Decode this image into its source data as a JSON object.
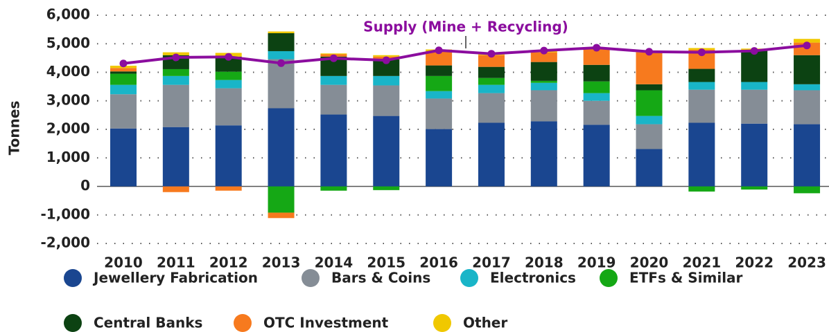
{
  "chart_data": {
    "type": "bar",
    "stacked": true,
    "y_label": "Tonnes",
    "annotation": "Supply (Mine + Recycling)",
    "categories": [
      "2010",
      "2011",
      "2012",
      "2013",
      "2014",
      "2015",
      "2016",
      "2017",
      "2018",
      "2019",
      "2020",
      "2021",
      "2022",
      "2023"
    ],
    "series": [
      {
        "name": "Jewellery Fabrication",
        "color": "#1a4690",
        "values": [
          2030,
          2080,
          2140,
          2740,
          2520,
          2470,
          2010,
          2230,
          2280,
          2160,
          1310,
          2230,
          2200,
          2180
        ]
      },
      {
        "name": "Bars & Coins",
        "color": "#858d96",
        "values": [
          1200,
          1480,
          1300,
          1720,
          1040,
          1070,
          1070,
          1040,
          1090,
          840,
          870,
          1160,
          1190,
          1190
        ]
      },
      {
        "name": "Electronics",
        "color": "#19b5c8",
        "values": [
          330,
          310,
          290,
          280,
          310,
          330,
          260,
          290,
          260,
          270,
          290,
          270,
          270,
          210
        ]
      },
      {
        "name": "ETFs & Similar",
        "color": "#15a815",
        "values": [
          390,
          240,
          290,
          -920,
          -150,
          -130,
          530,
          240,
          70,
          410,
          900,
          -180,
          -110,
          -240
        ]
      },
      {
        "name": "Central Banks",
        "color": "#0c4212",
        "values": [
          80,
          490,
          530,
          630,
          680,
          580,
          370,
          390,
          660,
          580,
          210,
          460,
          1090,
          1020
        ]
      },
      {
        "name": "OTC Investment",
        "color": "#f77a1e",
        "values": [
          120,
          -200,
          -150,
          -190,
          80,
          100,
          480,
          410,
          340,
          580,
          1120,
          670,
          40,
          440
        ]
      },
      {
        "name": "Other",
        "color": "#f0c800",
        "values": [
          80,
          100,
          130,
          60,
          30,
          50,
          80,
          50,
          50,
          30,
          40,
          60,
          40,
          130
        ]
      },
      {
        "name": "Supply (Mine + Recycling)",
        "type": "line",
        "color": "#8b0d9e",
        "values": [
          4310,
          4520,
          4540,
          4320,
          4490,
          4420,
          4770,
          4650,
          4760,
          4860,
          4720,
          4700,
          4750,
          4940
        ]
      }
    ],
    "ylim": [
      -2000,
      6000
    ],
    "yticks": [
      {
        "value": -2000,
        "label": "-2,000"
      },
      {
        "value": -1000,
        "label": "-1,000"
      },
      0,
      {
        "value": 1000,
        "label": "1,000"
      },
      {
        "value": 2000,
        "label": "2,000"
      },
      {
        "value": 3000,
        "label": "3,000"
      },
      {
        "value": 4000,
        "label": "4,000"
      },
      {
        "value": 5000,
        "label": "5,000"
      },
      {
        "value": 6000,
        "label": "6,000"
      }
    ],
    "grid": true
  }
}
